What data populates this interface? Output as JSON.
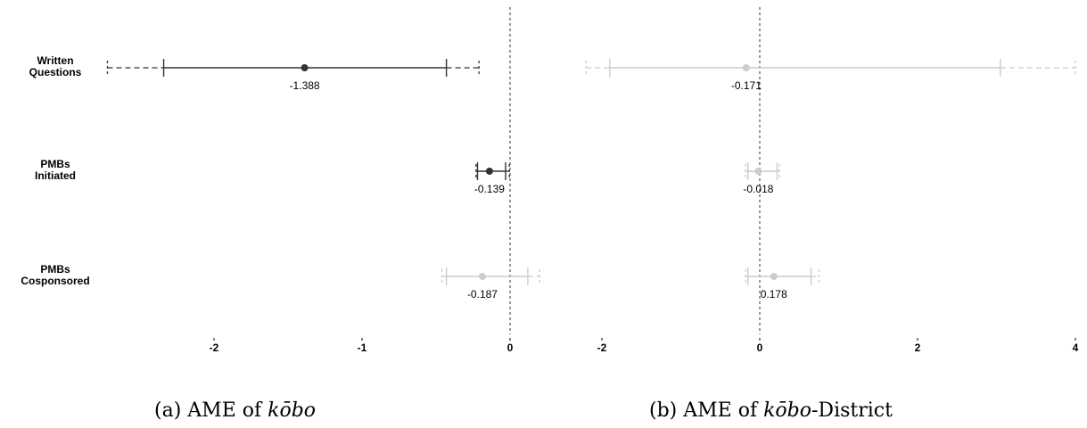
{
  "captions": {
    "a": {
      "prefix": "(a) AME of ",
      "italic": "kōbo",
      "suffix": ""
    },
    "b": {
      "prefix": "(b) AME of ",
      "italic": "kōbo",
      "suffix": "-District"
    }
  },
  "row_labels": [
    [
      "Written",
      "Questions"
    ],
    [
      "PMBs",
      "Initiated"
    ],
    [
      "PMBs",
      "Cosponsored"
    ]
  ],
  "colors": {
    "significant": "#333333",
    "nonsignificant": "#cccccc",
    "zero_line": "#333333"
  },
  "chart_data": [
    {
      "type": "scatter",
      "subtype": "coefficient-plot",
      "xlim": [
        -2.4,
        0.2
      ],
      "xticks": [
        -2,
        -1,
        0
      ],
      "xtick_labels": [
        "-2",
        "-1",
        "0"
      ],
      "reference_line": 0,
      "rows": [
        {
          "label": "Written Questions",
          "estimate": -1.388,
          "ci95": [
            -2.34,
            -0.43
          ],
          "ci99": [
            -2.72,
            -0.21
          ],
          "value_label": "-1.388",
          "significant": true
        },
        {
          "label": "PMBs Initiated",
          "estimate": -0.139,
          "ci95": [
            -0.22,
            -0.03
          ],
          "ci99": [
            -0.23,
            -0.005
          ],
          "value_label": "-0.139",
          "significant": true
        },
        {
          "label": "PMBs Cosponsored",
          "estimate": -0.187,
          "ci95": [
            -0.43,
            0.12
          ],
          "ci99": [
            -0.46,
            0.2
          ],
          "value_label": "-0.187",
          "significant": false
        }
      ]
    },
    {
      "type": "scatter",
      "subtype": "coefficient-plot",
      "xlim": [
        -2.3,
        4.0
      ],
      "xticks": [
        -2,
        0,
        2,
        4
      ],
      "xtick_labels": [
        "-2",
        "0",
        "2",
        "4"
      ],
      "reference_line": 0,
      "rows": [
        {
          "label": "Written Questions",
          "estimate": -0.171,
          "ci95": [
            -1.9,
            3.05
          ],
          "ci99": [
            -2.2,
            4.0
          ],
          "value_label": "-0.171",
          "significant": false
        },
        {
          "label": "PMBs Initiated",
          "estimate": -0.018,
          "ci95": [
            -0.15,
            0.22
          ],
          "ci99": [
            -0.18,
            0.25
          ],
          "value_label": "-0.018",
          "significant": false
        },
        {
          "label": "PMBs Cosponsored",
          "estimate": 0.178,
          "ci95": [
            -0.15,
            0.65
          ],
          "ci99": [
            -0.18,
            0.75
          ],
          "value_label": "0.178",
          "significant": false
        }
      ]
    }
  ]
}
